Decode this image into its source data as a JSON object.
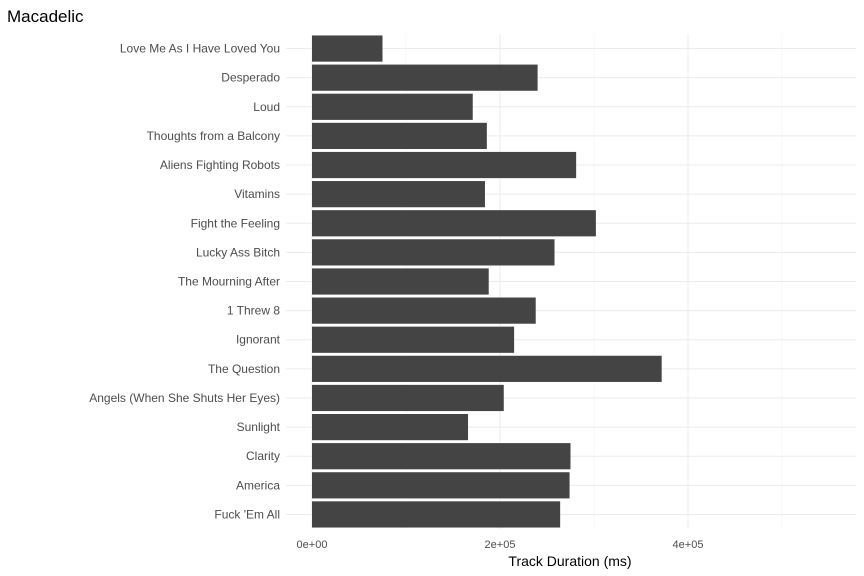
{
  "chart_data": {
    "type": "bar",
    "orientation": "horizontal",
    "title": "Macadelic",
    "xlabel": "Track Duration (ms)",
    "ylabel": "",
    "xlim": [
      0,
      580000
    ],
    "x_ticks": [
      0,
      200000,
      400000
    ],
    "x_tick_labels": [
      "0e+00",
      "2e+05",
      "4e+05"
    ],
    "grid": true,
    "categories": [
      "Love Me As I Have Loved You",
      "Desperado",
      "Loud",
      "Thoughts from a Balcony",
      "Aliens Fighting Robots",
      "Vitamins",
      "Fight the Feeling",
      "Lucky Ass Bitch",
      "The Mourning After",
      "1 Threw 8",
      "Ignorant",
      "The Question",
      "Angels (When She Shuts Her Eyes)",
      "Sunlight",
      "Clarity",
      "America",
      "Fuck 'Em All"
    ],
    "values": [
      75000,
      240000,
      171000,
      186000,
      281000,
      184000,
      302000,
      258000,
      188000,
      238000,
      215000,
      372000,
      204000,
      166000,
      275000,
      274000,
      264000
    ]
  }
}
